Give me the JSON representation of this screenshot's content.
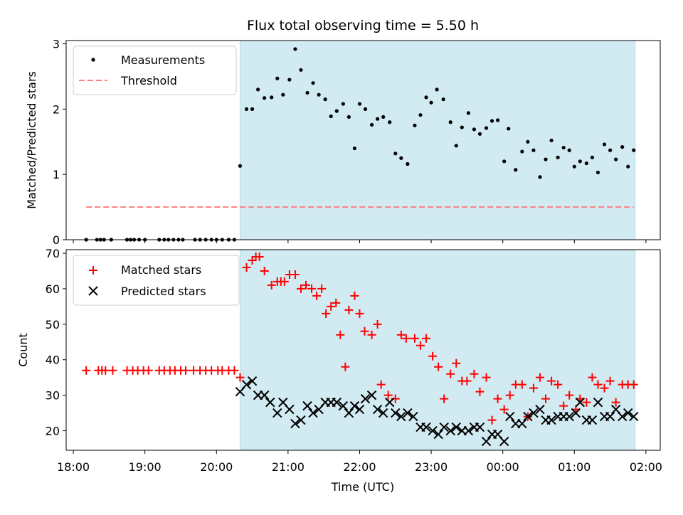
{
  "chart_data": {
    "title": "Flux total observing time = 5.50 h",
    "xlabel": "Time (UTC)",
    "x_ticks": [
      "18:00",
      "19:00",
      "20:00",
      "21:00",
      "22:00",
      "23:00",
      "00:00",
      "01:00",
      "02:00"
    ],
    "x_range_hours": [
      17.9,
      26.2
    ],
    "shaded_interval_hours": [
      20.33,
      25.85
    ],
    "colors": {
      "shade": "#add8e6",
      "measurement": "#000000",
      "threshold": "#ff7f7f",
      "matched": "#ff0000",
      "predicted": "#000000"
    },
    "panels": [
      {
        "type": "scatter",
        "ylabel": "Matched/Predicted stars",
        "ylim": [
          0,
          3.05
        ],
        "y_ticks": [
          0,
          1,
          2,
          3
        ],
        "legend_position": "upper-left",
        "series": [
          {
            "name": "Measurements",
            "marker": "dot",
            "x": [
              18.18,
              18.33,
              18.38,
              18.43,
              18.53,
              18.75,
              18.8,
              18.85,
              18.92,
              19.0,
              19.2,
              19.27,
              19.33,
              19.4,
              19.47,
              19.53,
              19.7,
              19.77,
              19.85,
              19.93,
              20.0,
              20.08,
              20.17,
              20.25,
              20.33,
              20.42,
              20.5,
              20.58,
              20.67,
              20.77,
              20.85,
              20.93,
              21.02,
              21.1,
              21.18,
              21.27,
              21.35,
              21.43,
              21.52,
              21.6,
              21.68,
              21.77,
              21.85,
              21.93,
              22.0,
              22.08,
              22.17,
              22.25,
              22.33,
              22.42,
              22.5,
              22.58,
              22.67,
              22.77,
              22.85,
              22.93,
              23.0,
              23.08,
              23.17,
              23.27,
              23.35,
              23.43,
              23.52,
              23.6,
              23.68,
              23.77,
              23.85,
              23.93,
              24.02,
              24.08,
              24.18,
              24.27,
              24.35,
              24.43,
              24.52,
              24.6,
              24.68,
              24.77,
              24.85,
              24.93,
              25.0,
              25.08,
              25.17,
              25.25,
              25.33,
              25.42,
              25.5,
              25.58,
              25.67,
              25.75,
              25.83
            ],
            "y": [
              0,
              0,
              0,
              0,
              0,
              0,
              0,
              0,
              0,
              0,
              0,
              0,
              0,
              0,
              0,
              0,
              0,
              0,
              0,
              0,
              0,
              0,
              0,
              0,
              1.13,
              2.0,
              2.0,
              2.3,
              2.17,
              2.18,
              2.47,
              2.22,
              2.45,
              2.92,
              2.6,
              2.25,
              2.4,
              2.22,
              2.15,
              1.89,
              1.97,
              2.08,
              1.88,
              1.4,
              2.08,
              2.0,
              1.76,
              1.85,
              1.88,
              1.8,
              1.32,
              1.25,
              1.16,
              1.75,
              1.91,
              2.18,
              2.1,
              2.3,
              2.15,
              1.8,
              1.44,
              1.72,
              1.94,
              1.69,
              1.62,
              1.71,
              1.82,
              1.83,
              1.2,
              1.7,
              1.07,
              1.35,
              1.5,
              1.37,
              0.96,
              1.23,
              1.52,
              1.26,
              1.41,
              1.37,
              1.12,
              1.2,
              1.17,
              1.26,
              1.03,
              1.46,
              1.37,
              1.23,
              1.42,
              1.12,
              1.37
            ]
          },
          {
            "name": "Threshold",
            "marker": "dashed-line",
            "x": [
              18.18,
              25.83
            ],
            "y": [
              0.5,
              0.5
            ]
          }
        ]
      },
      {
        "type": "scatter",
        "ylabel": "Count",
        "ylim": [
          14.5,
          71
        ],
        "y_ticks": [
          20,
          30,
          40,
          50,
          60,
          70
        ],
        "legend_position": "upper-left",
        "series": [
          {
            "name": "Matched stars",
            "marker": "plus",
            "x": [
              18.18,
              18.35,
              18.4,
              18.45,
              18.55,
              18.75,
              18.83,
              18.9,
              18.98,
              19.05,
              19.2,
              19.27,
              19.35,
              19.42,
              19.5,
              19.57,
              19.68,
              19.77,
              19.85,
              19.93,
              20.02,
              20.08,
              20.17,
              20.25,
              20.33,
              20.42,
              20.5,
              20.55,
              20.6,
              20.67,
              20.77,
              20.85,
              20.9,
              20.95,
              21.02,
              21.1,
              21.18,
              21.25,
              21.33,
              21.4,
              21.47,
              21.53,
              21.6,
              21.67,
              21.73,
              21.8,
              21.85,
              21.93,
              22.0,
              22.07,
              22.17,
              22.25,
              22.3,
              22.4,
              22.5,
              22.58,
              22.65,
              22.77,
              22.85,
              22.93,
              23.02,
              23.1,
              23.18,
              23.27,
              23.35,
              23.43,
              23.5,
              23.6,
              23.68,
              23.77,
              23.85,
              23.93,
              24.02,
              24.1,
              24.18,
              24.27,
              24.35,
              24.43,
              24.52,
              24.6,
              24.68,
              24.77,
              24.85,
              24.93,
              25.02,
              25.08,
              25.17,
              25.25,
              25.33,
              25.42,
              25.5,
              25.58,
              25.67,
              25.75,
              25.83
            ],
            "y": [
              37,
              37,
              37,
              37,
              37,
              37,
              37,
              37,
              37,
              37,
              37,
              37,
              37,
              37,
              37,
              37,
              37,
              37,
              37,
              37,
              37,
              37,
              37,
              37,
              35,
              66,
              68,
              69,
              69,
              65,
              61,
              62,
              62,
              62,
              64,
              64,
              60,
              61,
              60,
              58,
              60,
              53,
              55,
              56,
              47,
              38,
              54,
              58,
              53,
              48,
              47,
              50,
              33,
              30,
              29,
              47,
              46,
              46,
              44,
              46,
              41,
              38,
              29,
              36,
              39,
              34,
              34,
              36,
              31,
              35,
              23,
              29,
              26,
              30,
              33,
              33,
              24,
              32,
              35,
              29,
              34,
              33,
              27,
              30,
              26,
              29,
              28,
              35,
              33,
              32,
              34,
              28,
              33,
              33,
              33
            ]
          },
          {
            "name": "Predicted stars",
            "marker": "x",
            "x": [
              20.33,
              20.42,
              20.5,
              20.58,
              20.67,
              20.75,
              20.85,
              20.93,
              21.02,
              21.1,
              21.18,
              21.27,
              21.35,
              21.43,
              21.52,
              21.6,
              21.68,
              21.77,
              21.85,
              21.93,
              22.0,
              22.08,
              22.17,
              22.25,
              22.33,
              22.42,
              22.5,
              22.58,
              22.67,
              22.75,
              22.85,
              22.93,
              23.02,
              23.1,
              23.18,
              23.27,
              23.35,
              23.43,
              23.52,
              23.6,
              23.68,
              23.77,
              23.85,
              23.93,
              24.02,
              24.1,
              24.18,
              24.27,
              24.35,
              24.43,
              24.52,
              24.6,
              24.68,
              24.77,
              24.85,
              24.93,
              25.02,
              25.08,
              25.17,
              25.25,
              25.33,
              25.42,
              25.5,
              25.58,
              25.67,
              25.75,
              25.83
            ],
            "y": [
              31,
              33,
              34,
              30,
              30,
              28,
              25,
              28,
              26,
              22,
              23,
              27,
              25,
              26,
              28,
              28,
              28,
              27,
              25,
              27,
              26,
              29,
              30,
              26,
              25,
              28,
              25,
              24,
              25,
              24,
              21,
              21,
              20,
              19,
              21,
              20,
              21,
              20,
              20,
              21,
              21,
              17,
              19,
              19,
              17,
              24,
              22,
              22,
              24,
              25,
              26,
              23,
              23,
              24,
              24,
              24,
              25,
              28,
              23,
              23,
              28,
              24,
              24,
              26,
              24,
              25,
              24
            ]
          }
        ]
      }
    ]
  }
}
